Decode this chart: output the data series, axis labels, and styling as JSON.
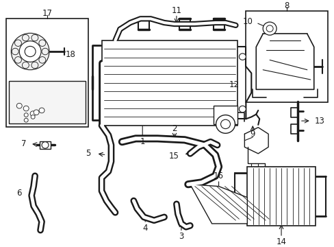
{
  "bg_color": "#ffffff",
  "line_color": "#1a1a1a",
  "figsize": [
    4.89,
    3.6
  ],
  "dpi": 100,
  "label_fontsize": 8.5,
  "lw_tube": 3.5,
  "lw_main": 1.0,
  "lw_thin": 0.7
}
